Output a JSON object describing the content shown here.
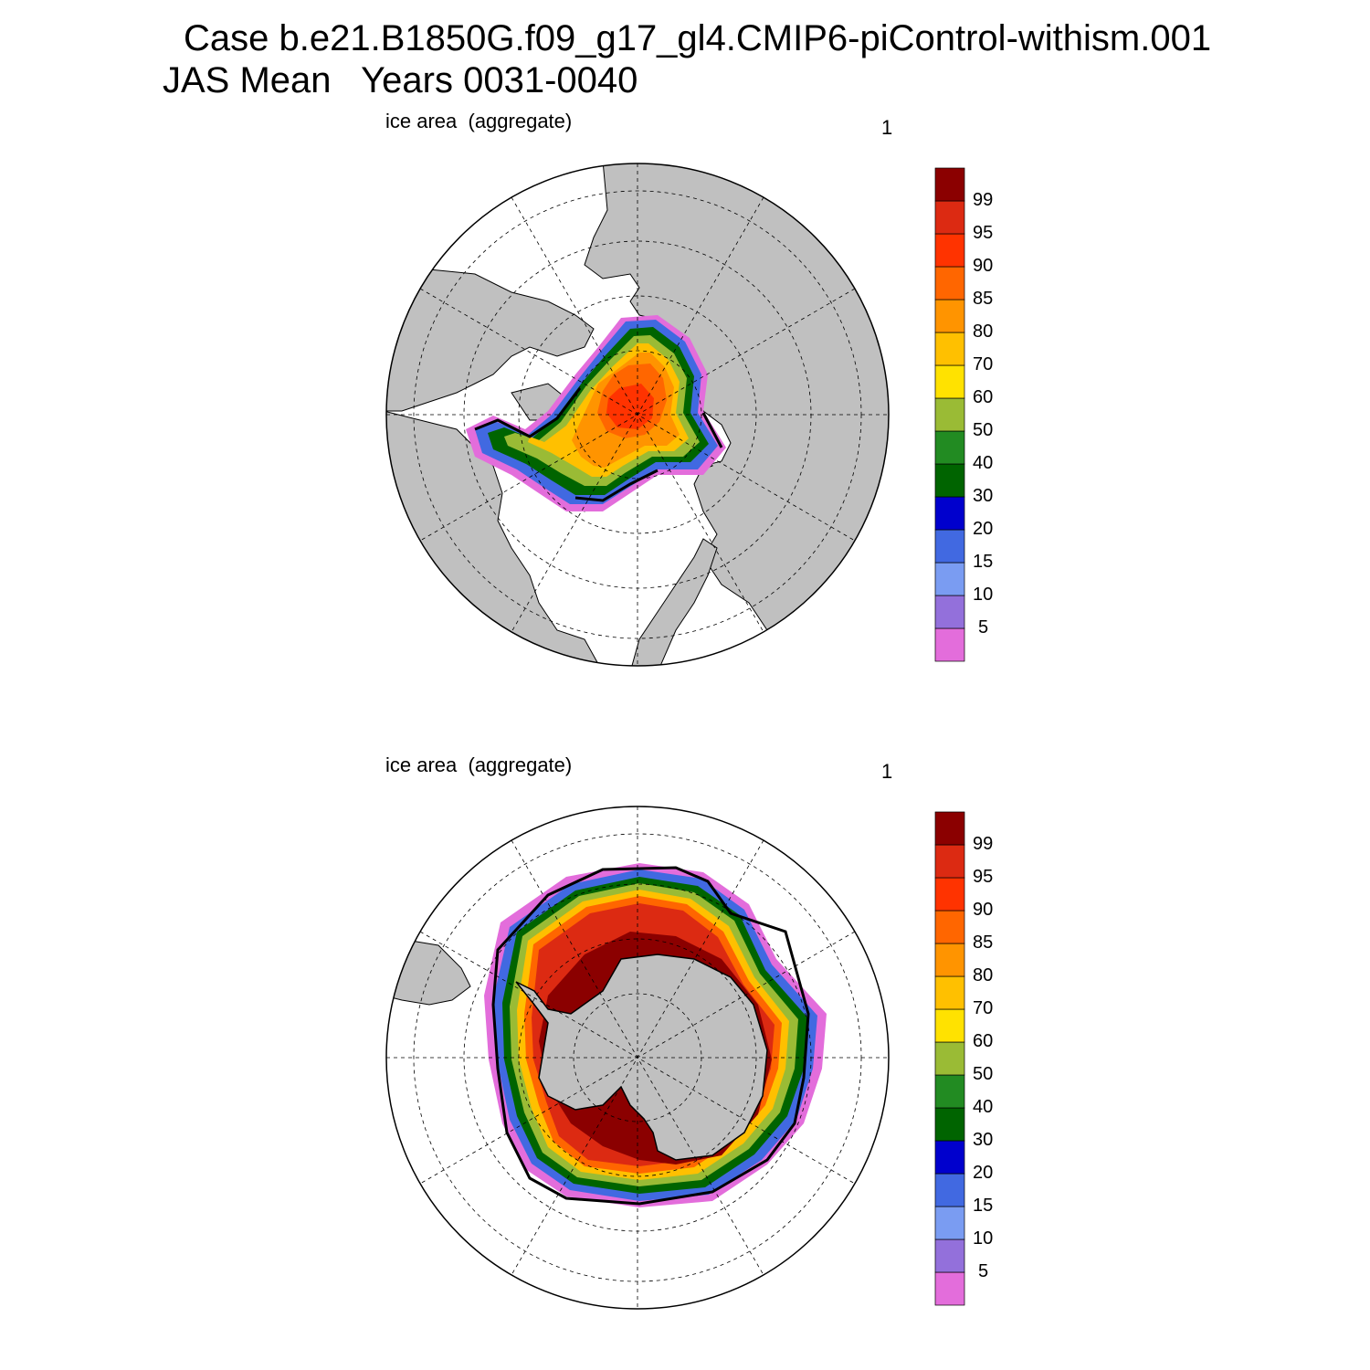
{
  "header": {
    "title_line1": "Case b.e21.B1850G.f09_g17_gl4.CMIP6-piControl-withism.001",
    "title_line2": "JAS Mean   Years 0031-0040"
  },
  "panels": [
    {
      "id": "north",
      "variable": "ice area  (aggregate)",
      "number": "1"
    },
    {
      "id": "south",
      "variable": "ice area  (aggregate)",
      "number": "1"
    }
  ],
  "colorbar": {
    "colors": [
      "#e36ddb",
      "#9370db",
      "#7a9cf2",
      "#4169e1",
      "#0000cd",
      "#006400",
      "#228b22",
      "#9abb35",
      "#ffe200",
      "#ffc000",
      "#ff9400",
      "#ff6600",
      "#ff3300",
      "#dc2a12",
      "#8b0000"
    ],
    "labels": [
      "5",
      "10",
      "15",
      "20",
      "30",
      "40",
      "50",
      "60",
      "70",
      "80",
      "85",
      "90",
      "95",
      "99"
    ]
  },
  "land_color": "#c0c0c0"
}
